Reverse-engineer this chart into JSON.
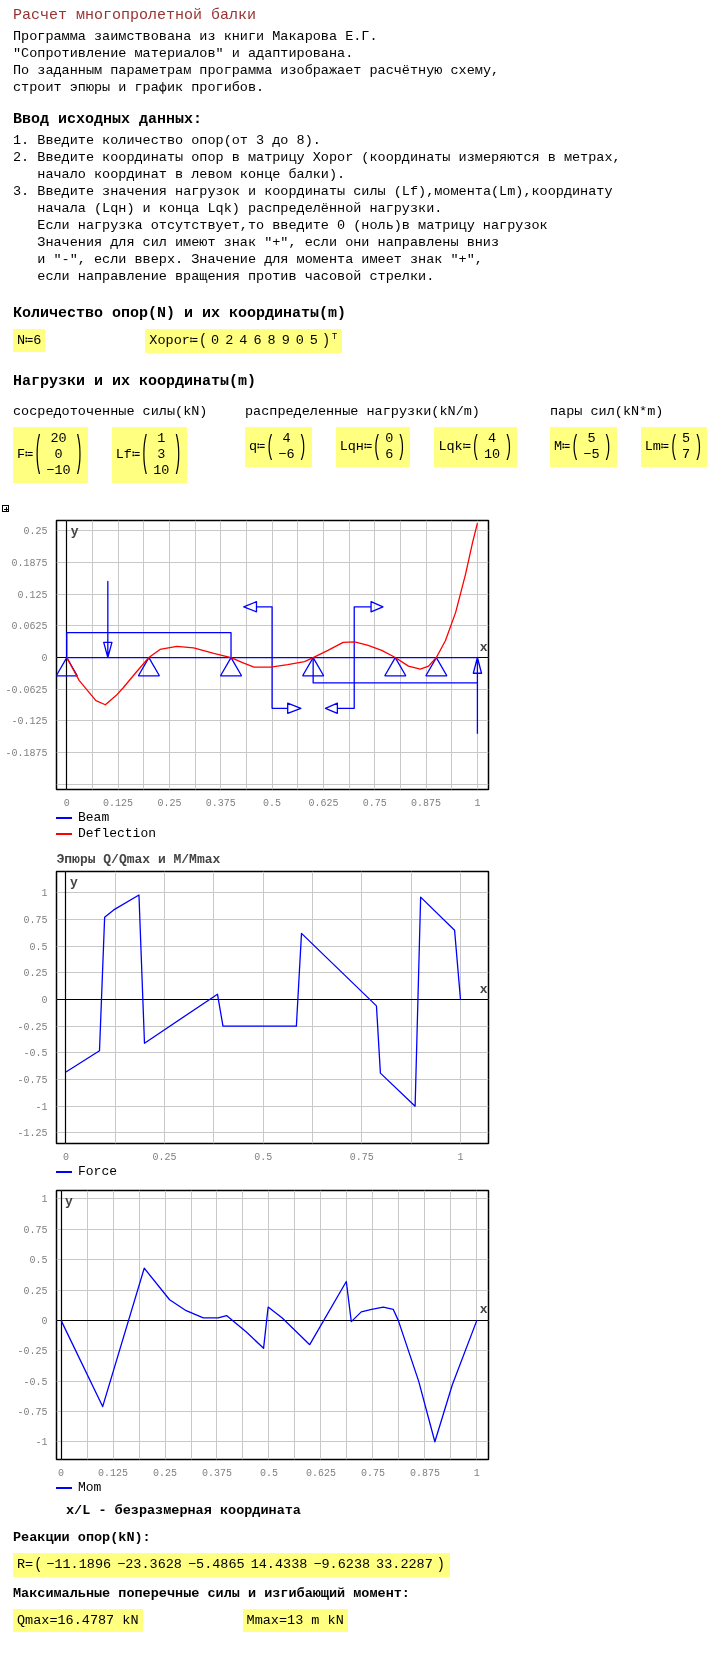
{
  "chart_data": [
    {
      "type": "other",
      "title": "Расчет многопролетной балки",
      "annotations": [
        "Программа заимствована из книги Макарова Е.Г.",
        "\"Сопротивление материалов\" и адаптирована.",
        "По заданным параметрам программа изображает расчётную схему,",
        "строит эпюры и график прогибов."
      ]
    },
    {
      "type": "other",
      "title": "Ввод исходных данных:",
      "annotations": [
        "1. Введите количество опор(от 3 до 8).",
        "2. Введите координаты опор в матрицу Xopor (координаты измеряются в метрах,\nначало координат в левом конце балки).",
        "3. Введите значения нагрузок и координаты силы (Lf),момента(Lm),координату\nначала (Lqн) и конца Lqk) распределённой нагрузки.\nЕсли нагрузка отсутствует,то введите 0 (ноль)в матрицу нагрузок\nЗначения для сил имеют знак \"+\", если они направлены вниз\nи \"-\", если вверх. Значение для момента имеет знак \"+\",\nесли направление вращения против часовой стрелки."
      ]
    },
    {
      "type": "other",
      "title": "Количество опор(N) и их координаты(m)",
      "annotations": [
        "N≔6",
        "Xopor≔(0 2 4 6 8 9 0 5)ᵀ"
      ]
    },
    {
      "type": "other",
      "title": "Нагрузки и их координаты(m)"
    },
    {
      "type": "other",
      "title": "сосредоточенные силы(kN)",
      "annotations": [
        "F≔(20\n0\n−10)",
        "Lf≔(1\n3\n10)"
      ]
    },
    {
      "type": "other",
      "title": "распределенные нагрузки(kN/m)",
      "annotations": [
        "q≔(4\n−6)",
        "Lqн≔(0\n6)",
        "Lqk≔(4\n10)"
      ]
    },
    {
      "type": "other",
      "title": "пары сил(kN*m)",
      "annotations": [
        "M≔(5\n−5)",
        "Lm≔(5\n7)"
      ]
    },
    {
      "type": "line",
      "xlabel": "x",
      "ylabel": "y",
      "xlim": [
        -0.025,
        1.027
      ],
      "ylim": [
        -0.26,
        0.27
      ],
      "xticks": [
        0,
        {
          "value": 0.0625,
          "label": null
        },
        0.125,
        {
          "value": 0.1875,
          "label": null
        },
        0.25,
        {
          "value": 0.3125,
          "label": null
        },
        0.375,
        {
          "value": 0.4375,
          "label": null
        },
        0.5,
        {
          "value": 0.5625,
          "label": null
        },
        0.625,
        {
          "value": 0.6875,
          "label": null
        },
        0.75,
        {
          "value": 0.8125,
          "label": null
        },
        0.875,
        {
          "value": 0.9375,
          "label": null
        },
        1
      ],
      "yticks": [
        {
          "value": -0.25,
          "label": null
        },
        -0.1875,
        -0.125,
        -0.0625,
        0,
        0.0625,
        0.125,
        0.1875,
        0.25
      ],
      "grid": true,
      "legend": "bottom",
      "series": [
        {
          "name": "Beam",
          "color": "#0000ff",
          "x": [
            0,
            0,
            0.4,
            0.4,
            0,
            0.1,
            0.09,
            0.11,
            0.1,
            0.1,
            0.1,
            0.5,
            0.5,
            0.462,
            0.462,
            0.431,
            0.462,
            0.462,
            0.5,
            0.5,
            0.538,
            0.538,
            0.57,
            0.538,
            0.538,
            0.5,
            0.5,
            1,
            1,
            0.6,
            0.6,
            0.7,
            0.7,
            0.741,
            0.741,
            0.77,
            0.741,
            0.741,
            0.7,
            0.7,
            0.659,
            0.659,
            0.63,
            0.659,
            0.659,
            0.7,
            0.7,
            1,
            0.99,
            1.01,
            1,
            1
          ],
          "values": [
            0,
            0.049,
            0.049,
            0,
            0,
            0,
            0.03,
            0.03,
            0,
            0.15,
            0,
            0,
            0.1,
            0.1,
            0.11,
            0.1,
            0.09,
            0.1,
            0.1,
            -0.1,
            -0.1,
            -0.09,
            -0.1,
            -0.11,
            -0.1,
            -0.1,
            0,
            0,
            -0.05,
            -0.05,
            0,
            0,
            0.1,
            0.1,
            0.11,
            0.1,
            0.09,
            0.1,
            0.1,
            -0.1,
            -0.1,
            -0.09,
            -0.1,
            -0.11,
            -0.1,
            -0.1,
            0,
            0,
            -0.031,
            -0.031,
            0,
            -0.15
          ]
        },
        {
          "type": "scatter",
          "color": "#0000ff",
          "marker": "triangle",
          "x": [
            0,
            0.2,
            0.4,
            0.6,
            0.8,
            0.9
          ],
          "values": [
            -0.024,
            -0.024,
            -0.024,
            -0.024,
            -0.024,
            -0.024
          ]
        },
        {
          "name": "Deflection",
          "color": "#ff0000",
          "x": [
            0,
            0.03,
            0.071,
            0.094,
            0.12,
            0.137,
            0.169,
            0.2,
            0.227,
            0.268,
            0.309,
            0.358,
            0.4,
            0.431,
            0.456,
            0.497,
            0.538,
            0.579,
            0.6,
            0.636,
            0.673,
            0.701,
            0.734,
            0.767,
            0.8,
            0.832,
            0.861,
            0.881,
            0.9,
            0.922,
            0.947,
            0.971,
            0.988,
            1
          ],
          "values": [
            0,
            -0.045,
            -0.085,
            -0.093,
            -0.075,
            -0.06,
            -0.029,
            0,
            0.016,
            0.022,
            0.019,
            0.008,
            0,
            -0.011,
            -0.019,
            -0.019,
            -0.014,
            -0.008,
            0,
            0.014,
            0.03,
            0.031,
            0.024,
            0.014,
            0,
            -0.017,
            -0.023,
            -0.017,
            0,
            0.033,
            0.089,
            0.164,
            0.226,
            0.265
          ]
        }
      ]
    },
    {
      "type": "line",
      "title": "Эпюры Q/Qmax и M/Mmax",
      "xlabel": "x",
      "ylabel": "y",
      "xlim": [
        -0.024,
        1.071
      ],
      "ylim": [
        -1.35,
        1.2
      ],
      "xticks": [
        0,
        {
          "value": 0.125,
          "label": null
        },
        0.25,
        {
          "value": 0.375,
          "label": null
        },
        0.5,
        {
          "value": 0.625,
          "label": null
        },
        0.75,
        {
          "value": 0.875,
          "label": null
        },
        1
      ],
      "yticks": [
        -1.25,
        -1,
        -0.75,
        -0.5,
        -0.25,
        0,
        0.25,
        0.5,
        0.75,
        1
      ],
      "grid": true,
      "legend": "bottom",
      "series": [
        {
          "name": "Force",
          "color": "#0000ff",
          "x": [
            0,
            0.085,
            0.098,
            0.121,
            0.185,
            0.199,
            0.384,
            0.398,
            0.584,
            0.597,
            0.787,
            0.797,
            0.885,
            0.899,
            0.985,
            1
          ],
          "values": [
            -0.68,
            -0.48,
            0.77,
            0.84,
            0.98,
            -0.41,
            0.05,
            -0.25,
            -0.25,
            0.62,
            -0.06,
            -0.69,
            -1.0,
            0.96,
            0.65,
            0
          ]
        }
      ]
    },
    {
      "type": "line",
      "xlabel": "x",
      "ylabel": "y",
      "xlim": [
        -0.011,
        1.028
      ],
      "ylim": [
        -1.146,
        1.07
      ],
      "xticks": [
        0,
        {
          "value": 0.0625,
          "label": null
        },
        0.125,
        {
          "value": 0.1875,
          "label": null
        },
        0.25,
        {
          "value": 0.3125,
          "label": null
        },
        0.375,
        {
          "value": 0.4375,
          "label": null
        },
        0.5,
        {
          "value": 0.5625,
          "label": null
        },
        0.625,
        {
          "value": 0.6875,
          "label": null
        },
        0.75,
        {
          "value": 0.8125,
          "label": null
        },
        0.875,
        {
          "value": 0.9375,
          "label": null
        },
        1
      ],
      "yticks": [
        -1,
        -0.75,
        -0.5,
        -0.25,
        0,
        0.25,
        0.5,
        0.75,
        1
      ],
      "grid": true,
      "legend": "bottom",
      "annotations": [
        "x/L - безразмерная координата"
      ],
      "series": [
        {
          "name": "Mom",
          "color": "#0000ff",
          "x": [
            0,
            0.1,
            0.2,
            0.261,
            0.301,
            0.342,
            0.378,
            0.398,
            0.447,
            0.487,
            0.498,
            0.532,
            0.598,
            0.686,
            0.698,
            0.722,
            0.747,
            0.775,
            0.799,
            0.811,
            0.86,
            0.899,
            0.941,
            1
          ],
          "values": [
            0,
            -0.71,
            0.43,
            0.17,
            0.08,
            0.02,
            0.02,
            0.04,
            -0.1,
            -0.23,
            0.11,
            0.02,
            -0.2,
            0.32,
            -0.01,
            0.07,
            0.09,
            0.11,
            0.09,
            0,
            -0.5,
            -1.0,
            -0.53,
            0
          ]
        }
      ]
    },
    {
      "type": "other",
      "title": "Реакции опор(kN):",
      "annotations": [
        "R=(−11.1896 −23.3628 −5.4865 14.4338 −9.6238 33.2287)"
      ]
    },
    {
      "type": "other",
      "title": "Максимальные поперечные силы и изгибающий момент:",
      "annotations": [
        "Qmax=16.4787 kN",
        "Mmax=13 m kN"
      ]
    }
  ]
}
